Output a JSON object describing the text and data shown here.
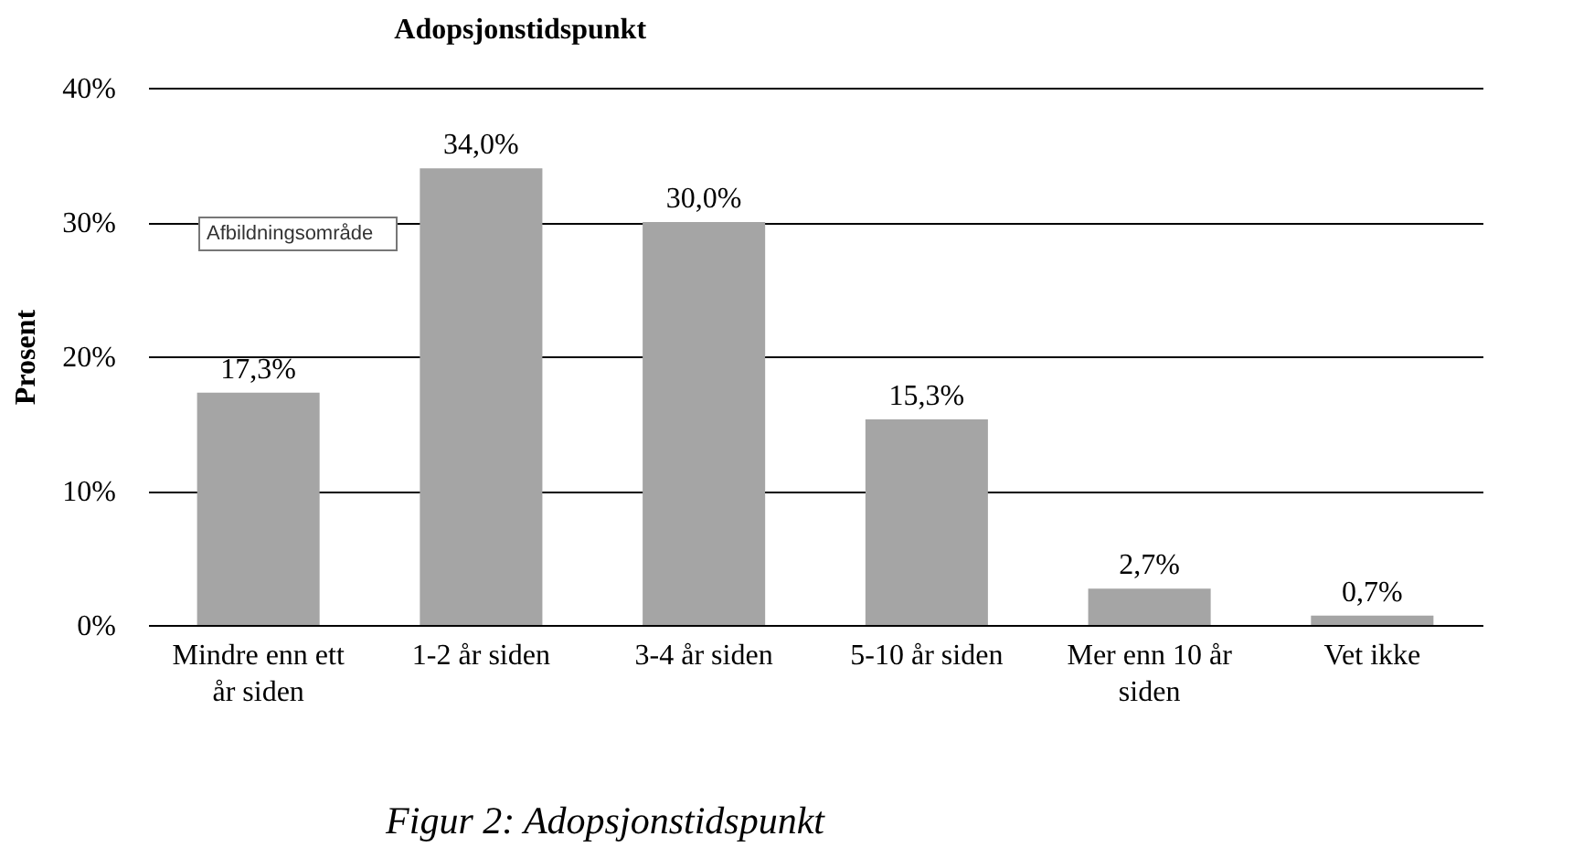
{
  "chart_data": {
    "type": "bar",
    "title": "Adopsjonstidspunkt",
    "ylabel": "Prosent",
    "categories": [
      "Mindre enn ett år siden",
      "1-2 år siden",
      "3-4 år siden",
      "5-10 år siden",
      "Mer enn 10 år siden",
      "Vet ikke"
    ],
    "values": [
      17.3,
      34.0,
      30.0,
      15.3,
      2.7,
      0.7
    ],
    "value_labels": [
      "17,3%",
      "34,0%",
      "30,0%",
      "15,3%",
      "2,7%",
      "0,7%"
    ],
    "color": "#a5a5a5",
    "ylim": [
      0,
      40
    ],
    "yticks": [
      {
        "value": 0,
        "label": "0%"
      },
      {
        "value": 10,
        "label": "10%"
      },
      {
        "value": 20,
        "label": "20%"
      },
      {
        "value": 30,
        "label": "30%"
      },
      {
        "value": 40,
        "label": "40%"
      }
    ],
    "grid": "y",
    "annotations": [
      "Afbildningsområde",
      "Figur 2: Adopsjonstidspunkt"
    ]
  }
}
